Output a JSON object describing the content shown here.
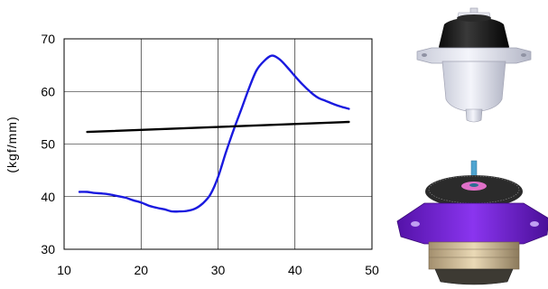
{
  "chart_data": {
    "type": "line",
    "title": "",
    "xlabel": "",
    "ylabel": "(kgf/mm)",
    "xlim": [
      10,
      50
    ],
    "ylim": [
      30,
      70
    ],
    "xticks": [
      10,
      20,
      30,
      40,
      50
    ],
    "yticks": [
      30,
      40,
      50,
      60,
      70
    ],
    "grid": true,
    "legend": "none",
    "series": [
      {
        "color": "#1a1adf",
        "x": [
          12,
          13,
          14,
          15,
          16,
          17,
          18,
          19,
          20,
          21,
          22,
          23,
          24,
          25,
          26,
          27,
          28,
          29,
          30,
          31,
          32,
          33,
          34,
          35,
          36,
          37,
          38,
          39,
          40,
          41,
          42,
          43,
          44,
          45,
          46,
          47
        ],
        "y": [
          40.9,
          40.9,
          40.7,
          40.6,
          40.4,
          40.1,
          39.8,
          39.3,
          38.9,
          38.3,
          37.9,
          37.6,
          37.2,
          37.2,
          37.3,
          37.7,
          38.7,
          40.4,
          43.7,
          48.3,
          52.6,
          56.5,
          60.5,
          64.0,
          65.8,
          66.8,
          66.1,
          64.6,
          62.9,
          61.3,
          59.9,
          58.8,
          58.2,
          57.6,
          57.1,
          56.7
        ]
      },
      {
        "color": "#000000",
        "x": [
          13,
          47
        ],
        "y": [
          52.3,
          54.2
        ]
      }
    ]
  },
  "images": [
    {
      "name": "white-mount-with-black-rubber",
      "colors": {
        "body": "#e6e8f2",
        "rubber": "#1a1a1a"
      }
    },
    {
      "name": "purple-mount-assembly",
      "colors": {
        "body": "#7a22d8",
        "coil": "#d8c9a8",
        "ring": "#2b2b2b",
        "shaft": "#4fa4d0"
      }
    }
  ]
}
